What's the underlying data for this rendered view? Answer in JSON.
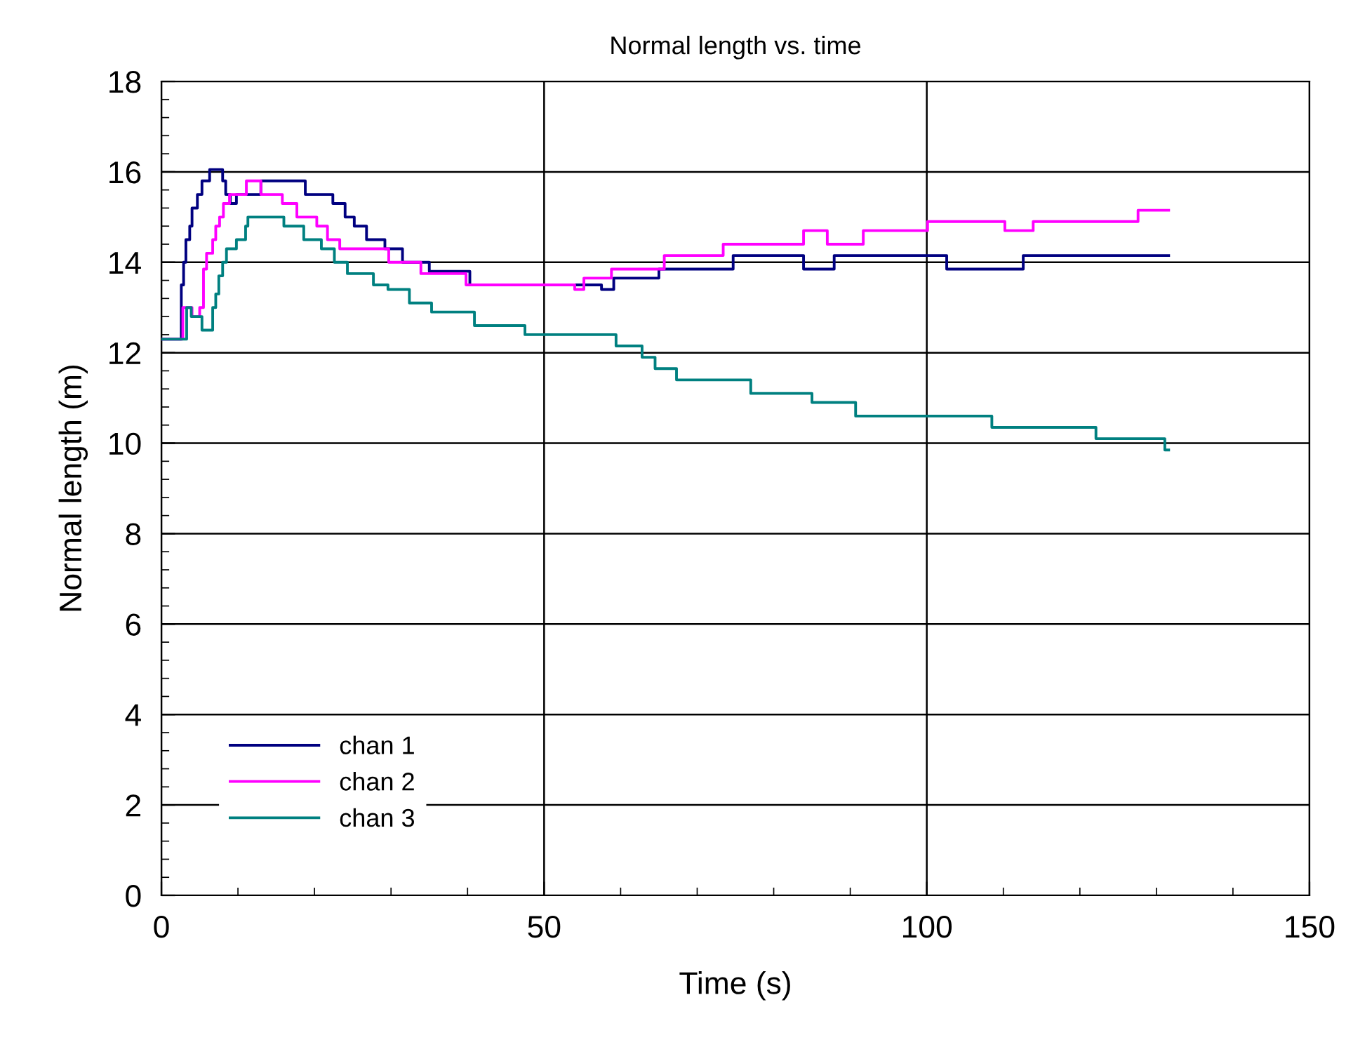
{
  "chart_data": {
    "type": "step",
    "title": "Normal length vs. time",
    "xlabel": "Time (s)",
    "ylabel": "Normal length (m)",
    "xlim": [
      0,
      150
    ],
    "xticks": [
      0,
      50,
      100,
      150
    ],
    "ylim": [
      0,
      18
    ],
    "yticks": [
      0,
      2,
      4,
      6,
      8,
      10,
      12,
      14,
      16,
      18
    ],
    "grid": true,
    "legend": "bottom left",
    "marker": "none",
    "line_style": "solid",
    "series": [
      {
        "name": "chan 1",
        "color": "#000080",
        "x": [
          0,
          2.6,
          2.9,
          3.2,
          3.7,
          4.0,
          4.7,
          5.3,
          6.3,
          8.0,
          8.4,
          9.0,
          9.8,
          13.0,
          18.8,
          22.4,
          24.0,
          25.2,
          26.8,
          29.2,
          31.5,
          35.0,
          40.3,
          57.5,
          59.1,
          65.0,
          74.7,
          83.9,
          87.9,
          102.6,
          112.6,
          131.6
        ],
        "values": [
          12.3,
          13.5,
          14.0,
          14.5,
          14.8,
          15.2,
          15.5,
          15.8,
          16.05,
          15.8,
          15.5,
          15.3,
          15.5,
          15.8,
          15.5,
          15.3,
          15.0,
          14.8,
          14.5,
          14.3,
          14.0,
          13.8,
          13.5,
          13.4,
          13.65,
          13.85,
          14.15,
          13.85,
          14.15,
          13.85,
          14.15,
          14.15
        ]
      },
      {
        "name": "chan 2",
        "color": "#ff00ff",
        "x": [
          0,
          2.8,
          4.0,
          5.0,
          5.5,
          5.9,
          6.7,
          7.1,
          7.6,
          8.1,
          8.9,
          11.1,
          13.0,
          15.8,
          17.7,
          20.3,
          21.7,
          23.3,
          29.7,
          33.9,
          39.8,
          54.0,
          55.2,
          58.8,
          65.7,
          73.4,
          83.9,
          87.0,
          91.7,
          100.1,
          110.2,
          113.9,
          127.6,
          131.6
        ],
        "values": [
          12.3,
          13.0,
          12.8,
          13.0,
          13.85,
          14.2,
          14.5,
          14.8,
          15.0,
          15.3,
          15.5,
          15.8,
          15.5,
          15.3,
          15.0,
          14.8,
          14.5,
          14.3,
          14.0,
          13.75,
          13.5,
          13.4,
          13.65,
          13.85,
          14.15,
          14.4,
          14.7,
          14.4,
          14.7,
          14.9,
          14.7,
          14.9,
          15.15,
          15.15
        ]
      },
      {
        "name": "chan 3",
        "color": "#008080",
        "x": [
          0,
          3.3,
          3.9,
          5.3,
          6.7,
          7.1,
          7.5,
          8.0,
          8.5,
          9.8,
          11.0,
          11.3,
          16.0,
          18.6,
          20.9,
          22.6,
          24.3,
          27.7,
          29.6,
          32.4,
          35.3,
          40.9,
          47.5,
          59.4,
          62.8,
          64.5,
          67.3,
          77.0,
          85.0,
          90.7,
          108.5,
          122.1,
          131.1,
          131.6
        ],
        "values": [
          12.3,
          13.0,
          12.8,
          12.5,
          13.0,
          13.3,
          13.7,
          14.0,
          14.3,
          14.5,
          14.8,
          15.0,
          14.8,
          14.5,
          14.3,
          14.0,
          13.75,
          13.5,
          13.4,
          13.1,
          12.9,
          12.6,
          12.4,
          12.15,
          11.9,
          11.65,
          11.4,
          11.1,
          10.9,
          10.6,
          10.35,
          10.1,
          9.85,
          9.85
        ]
      }
    ]
  }
}
